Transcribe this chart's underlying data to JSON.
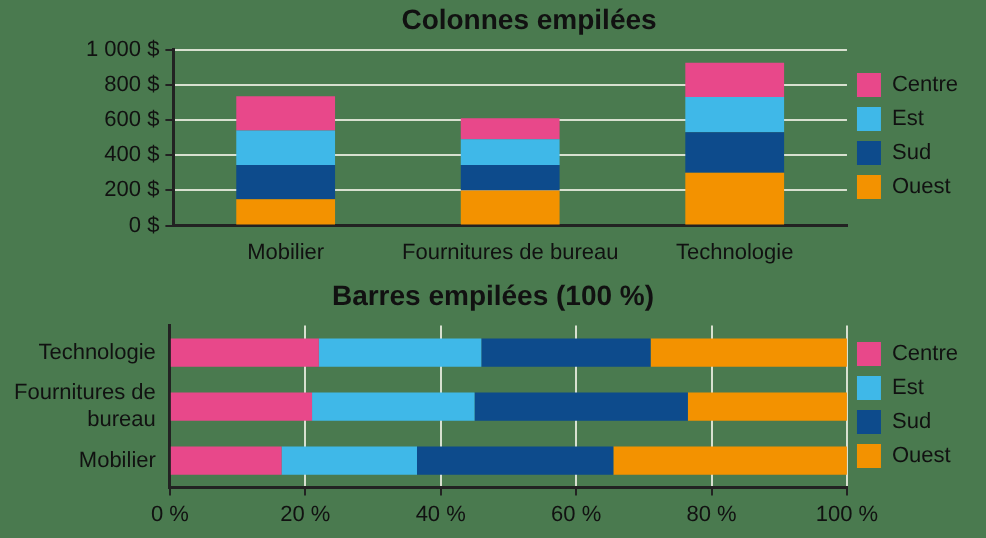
{
  "chart_data": [
    {
      "type": "bar",
      "title": "Colonnes empilées",
      "stacked": true,
      "categories": [
        "Mobilier",
        "Fournitures de bureau",
        "Technologie"
      ],
      "series": [
        {
          "name": "Ouest",
          "color": "#f39200",
          "values": [
            150,
            200,
            300
          ]
        },
        {
          "name": "Sud",
          "color": "#0d4b8c",
          "values": [
            195,
            145,
            230
          ]
        },
        {
          "name": "Est",
          "color": "#3fb8e8",
          "values": [
            195,
            145,
            200
          ]
        },
        {
          "name": "Centre",
          "color": "#e8488a",
          "values": [
            195,
            120,
            195
          ]
        }
      ],
      "ylim": [
        0,
        1000
      ],
      "yticks": [
        {
          "value": 0,
          "label": "0 $"
        },
        {
          "value": 200,
          "label": "200 $"
        },
        {
          "value": 400,
          "label": "400 $"
        },
        {
          "value": 600,
          "label": "600 $"
        },
        {
          "value": 800,
          "label": "800 $"
        },
        {
          "value": 1000,
          "label": "1 000 $"
        }
      ],
      "grid": "y",
      "legend": "right"
    },
    {
      "type": "bar",
      "title": "Barres empilées (100 %)",
      "stacked": true,
      "orientation": "horizontal",
      "categories": [
        "Technologie",
        "Fournitures de bureau",
        "Mobilier"
      ],
      "series": [
        {
          "name": "Centre",
          "color": "#e8488a",
          "values": [
            22,
            21,
            16.5
          ]
        },
        {
          "name": "Est",
          "color": "#3fb8e8",
          "values": [
            24,
            24,
            20
          ]
        },
        {
          "name": "Sud",
          "color": "#0d4b8c",
          "values": [
            25,
            31.5,
            29
          ]
        },
        {
          "name": "Ouest",
          "color": "#f39200",
          "values": [
            29,
            23.5,
            34.5
          ]
        }
      ],
      "xlim": [
        0,
        100
      ],
      "xticks": [
        {
          "value": 0,
          "label": "0 %"
        },
        {
          "value": 20,
          "label": "20 %"
        },
        {
          "value": 40,
          "label": "40 %"
        },
        {
          "value": 60,
          "label": "60 %"
        },
        {
          "value": 80,
          "label": "80 %"
        },
        {
          "value": 100,
          "label": "100 %"
        }
      ],
      "grid": "x",
      "legend": "right"
    }
  ]
}
